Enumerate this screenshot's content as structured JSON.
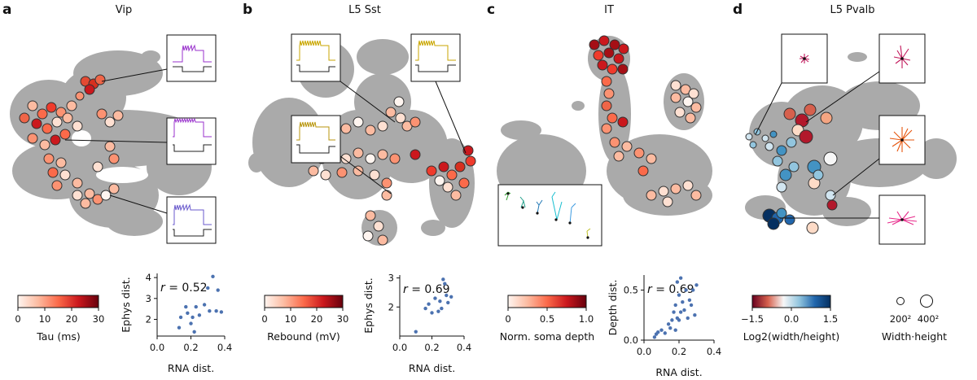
{
  "panels": [
    {
      "letter": "a",
      "title": "Vip"
    },
    {
      "letter": "b",
      "title": "L5 Sst"
    },
    {
      "letter": "c",
      "title": "IT"
    },
    {
      "letter": "d",
      "title": "L5 Pvalb"
    }
  ],
  "colorbars": [
    {
      "label": "Tau (ms)",
      "ticks": [
        "0",
        "10",
        "20",
        "30"
      ],
      "colors": [
        "#fff5f0",
        "#fcbba1",
        "#fb6a4a",
        "#cb181d",
        "#67000d"
      ]
    },
    {
      "label": "Rebound (mV)",
      "ticks": [
        "0",
        "10",
        "20",
        "30"
      ],
      "colors": [
        "#fff5f0",
        "#fcbba1",
        "#fb6a4a",
        "#cb181d",
        "#67000d"
      ]
    },
    {
      "label": "Norm. soma depth",
      "ticks": [
        "0",
        "0.5",
        "1.0"
      ],
      "colors": [
        "#fff5f0",
        "#fcbba1",
        "#fb6a4a",
        "#cb181d",
        "#67000d"
      ]
    },
    {
      "label": "Log2(width/height)",
      "ticks": [
        "−1.5",
        "0.0",
        "1.5"
      ],
      "colors": [
        "#67001f",
        "#d6604d",
        "#f7f7f7",
        "#92c5de",
        "#2166ac",
        "#053061"
      ]
    }
  ],
  "size_legend": {
    "label": "Width·height",
    "items": [
      "200²",
      "400²"
    ]
  },
  "chart_data": [
    {
      "type": "scatter",
      "panel": "a",
      "xlabel": "RNA dist.",
      "ylabel": "Ephys dist.",
      "xticks": [
        "0.0",
        "0.2",
        "0.4"
      ],
      "yticks": [
        "2",
        "3",
        "4"
      ],
      "xlim": [
        0.0,
        0.4
      ],
      "ylim": [
        1.2,
        4.2
      ],
      "annotation": {
        "r_symbol": "r",
        "text": " = 0.52"
      },
      "points": [
        [
          0.13,
          1.6
        ],
        [
          0.14,
          2.1
        ],
        [
          0.17,
          2.6
        ],
        [
          0.18,
          2.3
        ],
        [
          0.2,
          1.8
        ],
        [
          0.21,
          2.1
        ],
        [
          0.22,
          1.4
        ],
        [
          0.23,
          2.6
        ],
        [
          0.25,
          2.2
        ],
        [
          0.28,
          2.7
        ],
        [
          0.3,
          3.5
        ],
        [
          0.31,
          2.4
        ],
        [
          0.33,
          4.05
        ],
        [
          0.35,
          2.4
        ],
        [
          0.36,
          3.4
        ],
        [
          0.38,
          2.35
        ]
      ]
    },
    {
      "type": "scatter",
      "panel": "b",
      "xlabel": "RNA dist.",
      "ylabel": "Ephys dist.",
      "xticks": [
        "0.0",
        "0.2",
        "0.4"
      ],
      "yticks": [
        "2",
        "3"
      ],
      "xlim": [
        0.0,
        0.4
      ],
      "ylim": [
        1.0,
        3.1
      ],
      "annotation": {
        "r_symbol": "r",
        "text": " = 0.69"
      },
      "points": [
        [
          0.1,
          1.15
        ],
        [
          0.16,
          1.95
        ],
        [
          0.18,
          2.1
        ],
        [
          0.2,
          1.8
        ],
        [
          0.22,
          2.3
        ],
        [
          0.24,
          1.85
        ],
        [
          0.25,
          2.2
        ],
        [
          0.26,
          1.95
        ],
        [
          0.27,
          2.95
        ],
        [
          0.28,
          2.8
        ],
        [
          0.29,
          2.4
        ],
        [
          0.3,
          2.15
        ],
        [
          0.32,
          2.35
        ]
      ]
    },
    {
      "type": "scatter",
      "panel": "c",
      "xlabel": "RNA dist.",
      "ylabel": "Depth dist.",
      "xticks": [
        "0.0",
        "0.2",
        "0.4"
      ],
      "yticks": [
        "0.0",
        "0.5"
      ],
      "xlim": [
        0.0,
        0.4
      ],
      "ylim": [
        0.0,
        0.65
      ],
      "annotation": {
        "r_symbol": "r",
        "text": " = 0.69"
      },
      "points": [
        [
          0.06,
          0.03
        ],
        [
          0.07,
          0.06
        ],
        [
          0.08,
          0.08
        ],
        [
          0.1,
          0.1
        ],
        [
          0.12,
          0.07
        ],
        [
          0.14,
          0.16
        ],
        [
          0.15,
          0.12
        ],
        [
          0.16,
          0.2
        ],
        [
          0.17,
          0.28
        ],
        [
          0.18,
          0.1
        ],
        [
          0.18,
          0.35
        ],
        [
          0.19,
          0.22
        ],
        [
          0.2,
          0.45
        ],
        [
          0.2,
          0.2
        ],
        [
          0.21,
          0.28
        ],
        [
          0.22,
          0.38
        ],
        [
          0.23,
          0.3
        ],
        [
          0.24,
          0.5
        ],
        [
          0.25,
          0.22
        ],
        [
          0.26,
          0.4
        ],
        [
          0.27,
          0.35
        ],
        [
          0.28,
          0.5
        ],
        [
          0.29,
          0.25
        ],
        [
          0.3,
          0.55
        ],
        [
          0.21,
          0.62
        ],
        [
          0.19,
          0.58
        ]
      ]
    }
  ]
}
